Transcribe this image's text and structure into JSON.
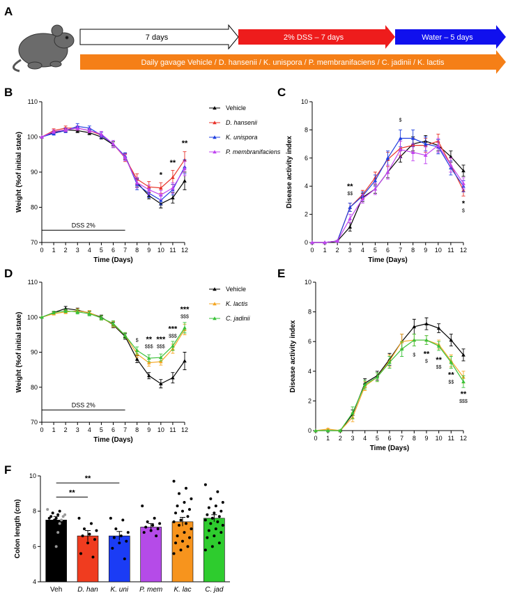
{
  "timeline": {
    "panel": "A",
    "phase1": "7 days",
    "phase2": "2% DSS – 7 days",
    "phase3": "Water – 5 days",
    "gavage": "Daily gavage Vehicle / D. hansenii / K. unispora / P. membranifaciens / C. jadinii / K. lactis"
  },
  "chart_data": [
    {
      "type": "line",
      "panel": "B",
      "ylabel": "Weight (%of initial state)",
      "xlabel": "Time (Days)",
      "xlim": [
        0,
        12
      ],
      "ylim": [
        70,
        110
      ],
      "xticks": [
        0,
        1,
        2,
        3,
        4,
        5,
        6,
        7,
        8,
        9,
        10,
        11,
        12
      ],
      "yticks": [
        70,
        80,
        90,
        100,
        110
      ],
      "legend": true,
      "x": [
        0,
        1,
        2,
        3,
        4,
        5,
        6,
        7,
        8,
        9,
        10,
        11,
        12
      ],
      "series": [
        {
          "name": "Vehicle",
          "color": "#000000",
          "values": [
            100,
            101.3,
            102,
            101.8,
            101.2,
            100,
            97.8,
            94.5,
            87,
            83.3,
            81,
            82.7,
            87.5
          ],
          "errors": [
            0,
            0.3,
            0.6,
            0.6,
            0.6,
            0.6,
            0.8,
            0.8,
            1.2,
            0.9,
            1.2,
            1.5,
            2.5
          ]
        },
        {
          "name": "D. hansenii",
          "color": "#e8332a",
          "values": [
            100,
            101.8,
            102.5,
            102.5,
            101.8,
            100.5,
            98,
            94,
            88,
            85.8,
            85.5,
            88.5,
            93.5
          ],
          "errors": [
            0,
            0.5,
            0.6,
            0.6,
            0.6,
            0.8,
            1,
            1,
            1.5,
            1.5,
            1.5,
            2,
            2.3
          ]
        },
        {
          "name": "K. unispora",
          "color": "#1f3fe0",
          "values": [
            100,
            101,
            101.8,
            103,
            102.5,
            100.5,
            98,
            94.5,
            86.5,
            84,
            82,
            85,
            91.5
          ],
          "errors": [
            0,
            0.5,
            0.6,
            0.8,
            0.6,
            0.8,
            1,
            1,
            1.5,
            1.2,
            1.3,
            1.5,
            2
          ]
        },
        {
          "name": "P. membranifaciens",
          "color": "#c044f0",
          "values": [
            100,
            101.5,
            102,
            102.5,
            101.8,
            100.8,
            98,
            94.2,
            87,
            85,
            83.5,
            85.5,
            91
          ],
          "errors": [
            0,
            0.5,
            0.5,
            0.6,
            0.6,
            0.8,
            1,
            1,
            1.5,
            1.3,
            1.3,
            1.5,
            2
          ]
        }
      ],
      "span": {
        "text": "DSS 2%",
        "x": [
          0,
          7
        ],
        "y": 73.5
      },
      "annotations": [
        {
          "x": 10,
          "y": 88.5,
          "texts": [
            "*"
          ]
        },
        {
          "x": 11,
          "y": 92,
          "texts": [
            "**"
          ]
        },
        {
          "x": 12,
          "y": 97.5,
          "texts": [
            "**"
          ]
        }
      ]
    },
    {
      "type": "line",
      "panel": "C",
      "ylabel": "Disease activity index",
      "xlabel": "Time (Days)",
      "xlim": [
        0,
        12
      ],
      "ylim": [
        0,
        10
      ],
      "xticks": [
        0,
        1,
        2,
        3,
        4,
        5,
        6,
        7,
        8,
        9,
        10,
        11,
        12
      ],
      "yticks": [
        0,
        2,
        4,
        6,
        8,
        10
      ],
      "legend": false,
      "x": [
        0,
        1,
        2,
        3,
        4,
        5,
        6,
        7,
        8,
        9,
        10,
        11,
        12
      ],
      "series": [
        {
          "name": "Vehicle",
          "color": "#000000",
          "values": [
            0,
            0,
            0.1,
            1.1,
            3.2,
            3.8,
            5,
            6.1,
            7,
            7.2,
            6.9,
            6.1,
            5.1
          ],
          "errors": [
            0,
            0,
            0.05,
            0.3,
            0.3,
            0.3,
            0.4,
            0.4,
            0.5,
            0.4,
            0.4,
            0.4,
            0.4
          ]
        },
        {
          "name": "D. hansenii",
          "color": "#e8332a",
          "values": [
            0,
            0,
            0.1,
            2.5,
            3.4,
            4.6,
            5.9,
            6.7,
            6.9,
            6.9,
            7.2,
            5.5,
            3.7
          ],
          "errors": [
            0,
            0,
            0.05,
            0.3,
            0.3,
            0.4,
            0.5,
            0.5,
            0.5,
            0.5,
            0.5,
            0.5,
            0.4
          ]
        },
        {
          "name": "K. unispora",
          "color": "#1f3fe0",
          "values": [
            0,
            0,
            0.1,
            2.5,
            3.3,
            4.4,
            6,
            7.4,
            7.4,
            7,
            6.8,
            5.3,
            4
          ],
          "errors": [
            0,
            0,
            0.05,
            0.3,
            0.3,
            0.4,
            0.5,
            0.6,
            0.6,
            0.5,
            0.5,
            0.5,
            0.4
          ]
        },
        {
          "name": "P. membranifaciens",
          "color": "#c044f0",
          "values": [
            0,
            0,
            0.1,
            1.7,
            3.1,
            3.8,
            5,
            6.6,
            6.4,
            6.2,
            6.9,
            5.5,
            4.2
          ],
          "errors": [
            0,
            0,
            0.05,
            0.3,
            0.3,
            0.4,
            0.5,
            0.6,
            0.6,
            0.6,
            0.5,
            0.5,
            0.4
          ]
        }
      ],
      "annotations": [
        {
          "x": 3,
          "y": 3.8,
          "texts": [
            "**",
            "$$"
          ]
        },
        {
          "x": 7,
          "y": 8.6,
          "texts": [
            "$"
          ]
        },
        {
          "x": 12,
          "y": 2.6,
          "texts": [
            "*",
            "$"
          ]
        }
      ]
    },
    {
      "type": "line",
      "panel": "D",
      "ylabel": "Weight (%of initial state)",
      "xlabel": "Time (Days)",
      "xlim": [
        0,
        12
      ],
      "ylim": [
        70,
        110
      ],
      "xticks": [
        0,
        1,
        2,
        3,
        4,
        5,
        6,
        7,
        8,
        9,
        10,
        11,
        12
      ],
      "yticks": [
        70,
        80,
        90,
        100,
        110
      ],
      "legend": true,
      "x": [
        0,
        1,
        2,
        3,
        4,
        5,
        6,
        7,
        8,
        9,
        10,
        11,
        12
      ],
      "series": [
        {
          "name": "Vehicle",
          "color": "#000000",
          "values": [
            100,
            101.3,
            102.5,
            102,
            101.2,
            100,
            97.8,
            94.5,
            88,
            83.3,
            81,
            82.7,
            87.5
          ],
          "errors": [
            0,
            0.3,
            0.6,
            0.6,
            0.6,
            0.6,
            0.8,
            0.8,
            1,
            0.9,
            1.2,
            1.5,
            2.5
          ]
        },
        {
          "name": "K. lactis",
          "color": "#f5a623",
          "values": [
            100,
            101,
            101.5,
            101.8,
            101.3,
            99.8,
            98,
            94.8,
            89.5,
            87,
            87.3,
            91,
            96.5
          ],
          "errors": [
            0,
            0.4,
            0.5,
            0.6,
            0.6,
            0.6,
            0.8,
            0.8,
            1,
            1,
            1,
            1.3,
            1.5
          ]
        },
        {
          "name": "C. jadinii",
          "color": "#39c239",
          "values": [
            100,
            101.3,
            101.8,
            101.5,
            101,
            99.8,
            98.2,
            94.8,
            90.5,
            88.3,
            88.5,
            91.8,
            97
          ],
          "errors": [
            0,
            0.4,
            0.5,
            0.6,
            0.6,
            0.6,
            0.8,
            0.8,
            1,
            1,
            1,
            1.3,
            1.5
          ]
        }
      ],
      "span": {
        "text": "DSS 2%",
        "x": [
          0,
          7
        ],
        "y": 73.5
      },
      "annotations": [
        {
          "x": 8,
          "y": 93,
          "texts": [
            "$"
          ]
        },
        {
          "x": 9,
          "y": 93,
          "texts": [
            "**",
            "$$$"
          ]
        },
        {
          "x": 10,
          "y": 93,
          "texts": [
            "***",
            "$$$"
          ]
        },
        {
          "x": 11,
          "y": 96,
          "texts": [
            "***",
            "$$$"
          ]
        },
        {
          "x": 12,
          "y": 101.5,
          "texts": [
            "***",
            "$$$"
          ]
        }
      ]
    },
    {
      "type": "line",
      "panel": "E",
      "ylabel": "Disease activity index",
      "xlabel": "Time (Days)",
      "xlim": [
        0,
        12
      ],
      "ylim": [
        0,
        10
      ],
      "xticks": [
        0,
        1,
        2,
        3,
        4,
        5,
        6,
        7,
        8,
        9,
        10,
        11,
        12
      ],
      "yticks": [
        0,
        2,
        4,
        6,
        8,
        10
      ],
      "legend": false,
      "x": [
        0,
        1,
        2,
        3,
        4,
        5,
        6,
        7,
        8,
        9,
        10,
        11,
        12
      ],
      "series": [
        {
          "name": "Vehicle",
          "color": "#000000",
          "values": [
            0,
            0,
            0,
            1.1,
            3.2,
            3.7,
            4.8,
            6,
            7,
            7.2,
            6.9,
            6.1,
            5.1
          ],
          "errors": [
            0,
            0,
            0.05,
            0.3,
            0.3,
            0.3,
            0.4,
            0.5,
            0.5,
            0.4,
            0.3,
            0.4,
            0.4
          ]
        },
        {
          "name": "K. lactis",
          "color": "#f5a623",
          "values": [
            0,
            0.1,
            0,
            0.9,
            3,
            3.6,
            4.7,
            6,
            6.1,
            6.1,
            5.8,
            4.7,
            3.6
          ],
          "errors": [
            0,
            0.05,
            0.05,
            0.3,
            0.3,
            0.3,
            0.4,
            0.5,
            0.4,
            0.3,
            0.3,
            0.4,
            0.4
          ]
        },
        {
          "name": "C. jadinii",
          "color": "#39c239",
          "values": [
            0,
            0,
            0,
            1.2,
            3.1,
            3.6,
            4.6,
            5.5,
            6.1,
            6.1,
            5.7,
            4.6,
            3.3
          ],
          "errors": [
            0,
            0,
            0.05,
            0.4,
            0.3,
            0.3,
            0.4,
            0.5,
            0.4,
            0.3,
            0.3,
            0.4,
            0.4
          ]
        }
      ],
      "annotations": [
        {
          "x": 8,
          "y": 5,
          "texts": [
            "$"
          ]
        },
        {
          "x": 9,
          "y": 5,
          "texts": [
            "**",
            "$"
          ]
        },
        {
          "x": 10,
          "y": 4.6,
          "texts": [
            "**",
            "$$"
          ]
        },
        {
          "x": 11,
          "y": 3.6,
          "texts": [
            "**",
            "$$"
          ]
        },
        {
          "x": 12,
          "y": 2.3,
          "texts": [
            "**",
            "$$$"
          ]
        }
      ]
    },
    {
      "type": "bar",
      "panel": "F",
      "ylabel": "Colon length (cm)",
      "ylim": [
        4,
        10
      ],
      "yticks": [
        4,
        6,
        8,
        10
      ],
      "categories": [
        "Veh",
        "D. han",
        "K. uni",
        "P. mem",
        "K. lac",
        "C. jad"
      ],
      "values": [
        7.5,
        6.6,
        6.6,
        7.1,
        7.4,
        7.6
      ],
      "errors": [
        0.2,
        0.3,
        0.25,
        0.2,
        0.25,
        0.2
      ],
      "colors": [
        "#000000",
        "#f03c1f",
        "#1b3cf5",
        "#b54be8",
        "#f7941d",
        "#2ecc2e"
      ],
      "points": [
        [
          8.1,
          8.0,
          7.9,
          7.8,
          7.8,
          7.7,
          7.7,
          7.6,
          7.6,
          7.5,
          7.5,
          7.4,
          7.3,
          7.2,
          7.0,
          6.8,
          6.5,
          6.3,
          6.0,
          5.6
        ],
        [
          7.6,
          7.3,
          7.0,
          6.9,
          6.7,
          6.6,
          6.4,
          6.2,
          5.6,
          5.4
        ],
        [
          7.6,
          7.5,
          7.0,
          6.8,
          6.6,
          6.5,
          6.3,
          6.2,
          5.9,
          5.3
        ],
        [
          8.3,
          7.6,
          7.4,
          7.3,
          7.2,
          7.1,
          7.0,
          6.9,
          6.8,
          6.6
        ],
        [
          9.7,
          9.3,
          9.0,
          8.7,
          8.5,
          8.3,
          8.1,
          8.0,
          7.9,
          7.7,
          7.5,
          7.4,
          7.3,
          7.2,
          7.0,
          6.8,
          6.6,
          6.5,
          6.3,
          6.2,
          6.0,
          5.8,
          5.6
        ],
        [
          9.5,
          9.1,
          8.7,
          8.5,
          8.3,
          8.2,
          8.0,
          7.9,
          7.8,
          7.7,
          7.6,
          7.5,
          7.4,
          7.3,
          7.2,
          7.0,
          6.9,
          6.8,
          6.6,
          6.5,
          6.2,
          6.0,
          5.8
        ]
      ],
      "brackets": [
        {
          "from": 0,
          "to": 1,
          "y": 8.8,
          "text": "**"
        },
        {
          "from": 0,
          "to": 2,
          "y": 9.6,
          "text": "**"
        }
      ]
    }
  ]
}
